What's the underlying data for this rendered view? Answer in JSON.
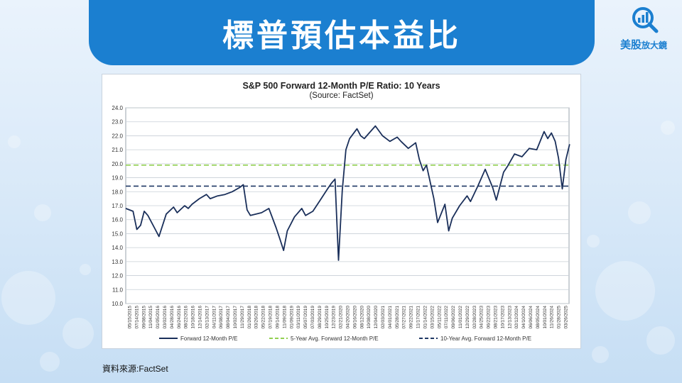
{
  "header": {
    "title": "標普預估本益比"
  },
  "logo": {
    "brand_main": "美股",
    "brand_sub": "放大鏡",
    "icon": "magnifier-chart-icon",
    "color": "#1b7fd0"
  },
  "source_note": "資料來源:FactSet",
  "colors": {
    "title_bar": "#1b7fd0",
    "pe_line": "#1a2f5a",
    "avg5": "#92d050",
    "avg10": "#1f3864"
  },
  "chart_data": {
    "type": "line",
    "title": "S&P 500 Forward 12-Month P/E Ratio: 10 Years",
    "subtitle": "(Source: FactSet)",
    "ylim": [
      10.0,
      24.0
    ],
    "yticks": [
      "10.0",
      "11.0",
      "12.0",
      "13.0",
      "14.0",
      "15.0",
      "16.0",
      "17.0",
      "18.0",
      "19.0",
      "20.0",
      "21.0",
      "22.0",
      "23.0",
      "24.0"
    ],
    "grid": true,
    "legend_position": "bottom",
    "xtick_labels": [
      "05/15/2015",
      "07/14/2015",
      "09/08/2015",
      "11/04/2015",
      "01/05/2016",
      "03/02/2016",
      "04/28/2016",
      "06/24/2016",
      "08/22/2016",
      "10/18/2016",
      "12/14/2016",
      "02/13/2017",
      "04/11/2017",
      "06/08/2017",
      "08/04/2017",
      "10/02/2017",
      "11/29/2017",
      "01/26/2018",
      "03/26/2018",
      "05/22/2018",
      "07/19/2018",
      "09/14/2018",
      "11/09/2018",
      "01/09/2019",
      "03/11/2019",
      "05/07/2019",
      "07/03/2019",
      "08/29/2019",
      "10/25/2019",
      "12/23/2019",
      "02/21/2020",
      "04/20/2020",
      "06/16/2020",
      "08/12/2020",
      "10/08/2020",
      "12/04/2020",
      "02/03/2021",
      "04/01/2021",
      "05/28/2021",
      "07/27/2021",
      "09/22/2021",
      "11/17/2021",
      "01/14/2022",
      "03/15/2022",
      "05/11/2022",
      "07/11/2022",
      "09/06/2022",
      "11/01/2022",
      "12/29/2022",
      "02/28/2023",
      "04/25/2023",
      "06/22/2023",
      "08/21/2023",
      "10/17/2023",
      "12/13/2023",
      "02/12/2024",
      "04/10/2024",
      "06/06/2024",
      "08/05/2024",
      "10/01/2024",
      "11/26/2024",
      "01/28/2025",
      "03/26/2025"
    ],
    "series": [
      {
        "name": "Forward 12-Month P/E",
        "style": "solid",
        "color": "#1a2f5a",
        "x": [
          "2015-05",
          "2015-07",
          "2015-08",
          "2015-09",
          "2015-10",
          "2015-11",
          "2016-01",
          "2016-02",
          "2016-04",
          "2016-06",
          "2016-07",
          "2016-09",
          "2016-10",
          "2016-11",
          "2017-01",
          "2017-03",
          "2017-04",
          "2017-06",
          "2017-08",
          "2017-10",
          "2017-12",
          "2018-01",
          "2018-02",
          "2018-03",
          "2018-06",
          "2018-08",
          "2018-10",
          "2018-11",
          "2018-12",
          "2019-01",
          "2019-03",
          "2019-05",
          "2019-06",
          "2019-08",
          "2019-10",
          "2019-12",
          "2020-01",
          "2020-02",
          "2020-03",
          "2020-04",
          "2020-05",
          "2020-06",
          "2020-08",
          "2020-09",
          "2020-10",
          "2020-12",
          "2021-01",
          "2021-03",
          "2021-05",
          "2021-07",
          "2021-08",
          "2021-10",
          "2021-12",
          "2022-01",
          "2022-02",
          "2022-03",
          "2022-05",
          "2022-06",
          "2022-08",
          "2022-09",
          "2022-10",
          "2022-12",
          "2023-02",
          "2023-03",
          "2023-05",
          "2023-07",
          "2023-09",
          "2023-10",
          "2023-12",
          "2024-01",
          "2024-03",
          "2024-05",
          "2024-07",
          "2024-09",
          "2024-11",
          "2024-12",
          "2025-01",
          "2025-02",
          "2025-03",
          "2025-04",
          "2025-05",
          "2025-06"
        ],
        "y": [
          16.8,
          16.6,
          15.3,
          15.6,
          16.6,
          16.3,
          15.3,
          14.8,
          16.4,
          16.9,
          16.5,
          17.0,
          16.8,
          17.1,
          17.5,
          17.8,
          17.5,
          17.7,
          17.8,
          18.0,
          18.3,
          18.5,
          16.7,
          16.3,
          16.5,
          16.8,
          15.4,
          14.6,
          13.8,
          15.2,
          16.2,
          16.8,
          16.3,
          16.6,
          17.4,
          18.2,
          18.6,
          18.9,
          13.1,
          18.1,
          21.0,
          21.8,
          22.5,
          22.0,
          21.8,
          22.4,
          22.7,
          22.0,
          21.6,
          21.9,
          21.6,
          21.1,
          21.5,
          20.3,
          19.5,
          19.9,
          17.5,
          15.8,
          17.1,
          15.2,
          16.1,
          17.0,
          17.7,
          17.3,
          18.4,
          19.6,
          18.3,
          17.4,
          19.4,
          19.8,
          20.7,
          20.5,
          21.1,
          21.0,
          22.3,
          21.8,
          22.2,
          21.6,
          20.4,
          18.2,
          20.3,
          21.4
        ]
      },
      {
        "name": "5-Year Avg. Forward 12-Month P/E",
        "style": "dashed",
        "color": "#92d050",
        "value": 19.9
      },
      {
        "name": "10-Year Avg. Forward 12-Month P/E",
        "style": "dashed",
        "color": "#1f3864",
        "value": 18.4
      }
    ]
  }
}
